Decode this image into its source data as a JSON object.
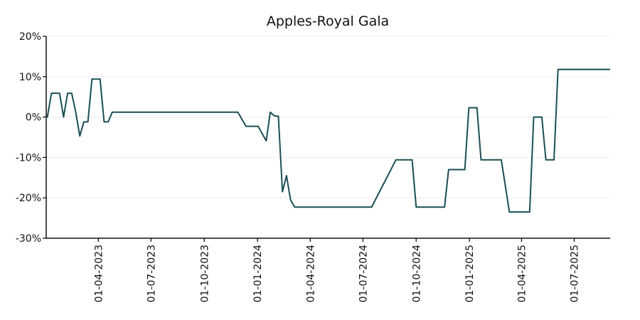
{
  "chart_data": {
    "type": "line",
    "title": "Apples-Royal Gala",
    "xlabel": "",
    "ylabel": "",
    "ylim": [
      -30,
      20
    ],
    "xlim": [
      "2023-01-01",
      "2025-09-01"
    ],
    "grid": "horizontal",
    "legend": "none",
    "color": "#1a4f55",
    "y_ticks": [
      {
        "value": 20,
        "label": "20%"
      },
      {
        "value": 10,
        "label": "10%"
      },
      {
        "value": 0,
        "label": "0%"
      },
      {
        "value": -10,
        "label": "-10%"
      },
      {
        "value": -20,
        "label": "-20%"
      },
      {
        "value": -30,
        "label": "-30%"
      }
    ],
    "x_ticks": [
      {
        "value": "2023-04-01",
        "label": "01-04-2023"
      },
      {
        "value": "2023-07-01",
        "label": "01-07-2023"
      },
      {
        "value": "2023-10-01",
        "label": "01-10-2023"
      },
      {
        "value": "2024-01-01",
        "label": "01-01-2024"
      },
      {
        "value": "2024-04-01",
        "label": "01-04-2024"
      },
      {
        "value": "2024-07-01",
        "label": "01-07-2024"
      },
      {
        "value": "2024-10-01",
        "label": "01-10-2024"
      },
      {
        "value": "2025-01-01",
        "label": "01-01-2025"
      },
      {
        "value": "2025-04-01",
        "label": "01-04-2025"
      },
      {
        "value": "2025-07-01",
        "label": "01-07-2025"
      }
    ],
    "series": [
      {
        "points": [
          [
            "2023-01-03",
            0
          ],
          [
            "2023-01-10",
            5.9
          ],
          [
            "2023-01-24",
            5.9
          ],
          [
            "2023-01-31",
            0
          ],
          [
            "2023-02-07",
            5.9
          ],
          [
            "2023-02-14",
            5.9
          ],
          [
            "2023-02-21",
            1.2
          ],
          [
            "2023-02-28",
            -4.7
          ],
          [
            "2023-03-07",
            -1.2
          ],
          [
            "2023-03-14",
            -1.2
          ],
          [
            "2023-03-21",
            9.4
          ],
          [
            "2023-04-04",
            9.4
          ],
          [
            "2023-04-11",
            -1.2
          ],
          [
            "2023-04-18",
            -1.2
          ],
          [
            "2023-04-25",
            1.2
          ],
          [
            "2023-11-28",
            1.2
          ],
          [
            "2023-12-12",
            -2.3
          ],
          [
            "2023-12-26",
            -2.3
          ],
          [
            "2024-01-02",
            -2.3
          ],
          [
            "2024-01-16",
            -5.9
          ],
          [
            "2024-01-23",
            1.2
          ],
          [
            "2024-01-30",
            0.3
          ],
          [
            "2024-02-06",
            0.2
          ],
          [
            "2024-02-13",
            -18.5
          ],
          [
            "2024-02-20",
            -14.5
          ],
          [
            "2024-02-27",
            -20.5
          ],
          [
            "2024-03-05",
            -22.3
          ],
          [
            "2024-07-16",
            -22.3
          ],
          [
            "2024-08-27",
            -10.6
          ],
          [
            "2024-09-24",
            -10.6
          ],
          [
            "2024-10-01",
            -22.3
          ],
          [
            "2024-11-19",
            -22.3
          ],
          [
            "2024-11-26",
            -13
          ],
          [
            "2024-12-24",
            -13
          ],
          [
            "2024-12-31",
            2.3
          ],
          [
            "2025-01-14",
            2.3
          ],
          [
            "2025-01-21",
            -10.6
          ],
          [
            "2025-02-25",
            -10.6
          ],
          [
            "2025-03-11",
            -23.5
          ],
          [
            "2025-04-15",
            -23.5
          ],
          [
            "2025-04-22",
            0
          ],
          [
            "2025-05-06",
            0
          ],
          [
            "2025-05-13",
            -10.6
          ],
          [
            "2025-05-27",
            -10.6
          ],
          [
            "2025-06-03",
            11.8
          ],
          [
            "2025-08-31",
            11.8
          ]
        ]
      }
    ]
  }
}
